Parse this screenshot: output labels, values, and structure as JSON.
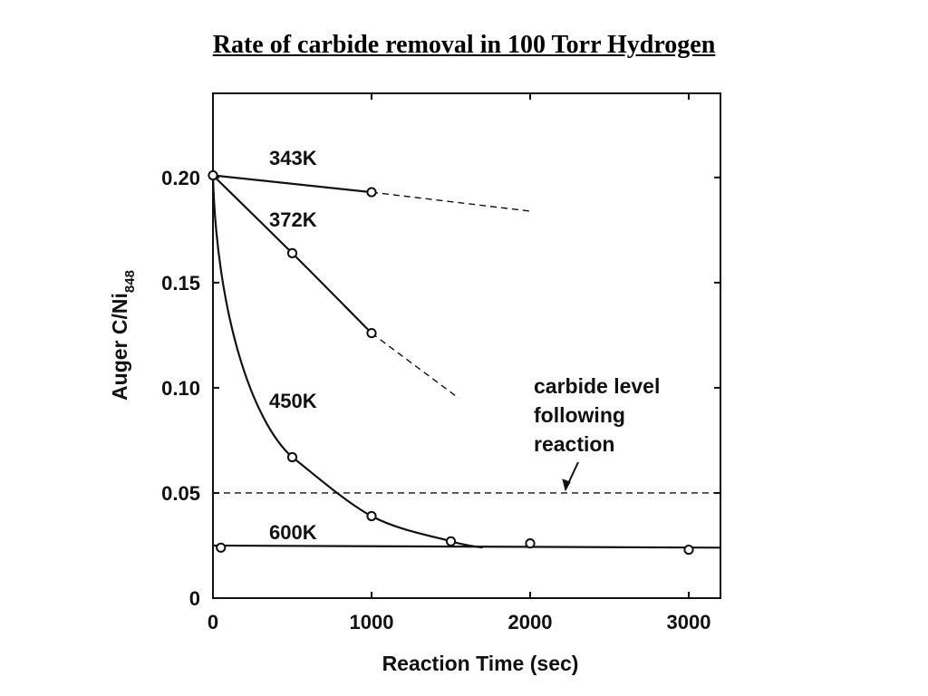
{
  "title": "Rate of carbide removal in 100 Torr Hydrogen",
  "chart_data": {
    "type": "line",
    "xlabel": "Reaction Time (sec)",
    "ylabel_main": "Auger C/Ni",
    "ylabel_sub": "848",
    "xlim": [
      0,
      3200
    ],
    "ylim": [
      0,
      0.24
    ],
    "x_ticks": [
      {
        "value": 0,
        "label": "0"
      },
      {
        "value": 1000,
        "label": "1000"
      },
      {
        "value": 2000,
        "label": "2000"
      },
      {
        "value": 3000,
        "label": "3000"
      }
    ],
    "y_ticks": [
      {
        "value": 0,
        "label": "0"
      },
      {
        "value": 0.05,
        "label": "0.05"
      },
      {
        "value": 0.1,
        "label": "0.10"
      },
      {
        "value": 0.15,
        "label": "0.15"
      },
      {
        "value": 0.2,
        "label": "0.20"
      }
    ],
    "series": [
      {
        "name": "343K",
        "points": [
          [
            0,
            0.201
          ],
          [
            1000,
            0.193
          ]
        ],
        "extrapolated": [
          [
            1000,
            0.193
          ],
          [
            2000,
            0.184
          ]
        ]
      },
      {
        "name": "372K",
        "points": [
          [
            0,
            0.201
          ],
          [
            500,
            0.164
          ],
          [
            1000,
            0.126
          ]
        ],
        "extrapolated": [
          [
            1000,
            0.126
          ],
          [
            1550,
            0.095
          ]
        ]
      },
      {
        "name": "450K",
        "points": [
          [
            0,
            0.201
          ],
          [
            500,
            0.067
          ],
          [
            1000,
            0.039
          ],
          [
            1500,
            0.027
          ],
          [
            1700,
            0.024
          ]
        ],
        "markers": [
          [
            0,
            0.201
          ],
          [
            500,
            0.067
          ],
          [
            1000,
            0.039
          ],
          [
            1500,
            0.027
          ]
        ]
      },
      {
        "name": "600K",
        "points": [
          [
            50,
            0.024
          ],
          [
            2000,
            0.026
          ],
          [
            3000,
            0.023
          ]
        ],
        "line": [
          [
            0,
            0.025
          ],
          [
            3200,
            0.024
          ]
        ]
      }
    ],
    "reference_line": {
      "y": 0.05,
      "style": "dashed"
    },
    "annotation": {
      "lines": [
        "carbide level",
        "following",
        "reaction"
      ]
    }
  }
}
